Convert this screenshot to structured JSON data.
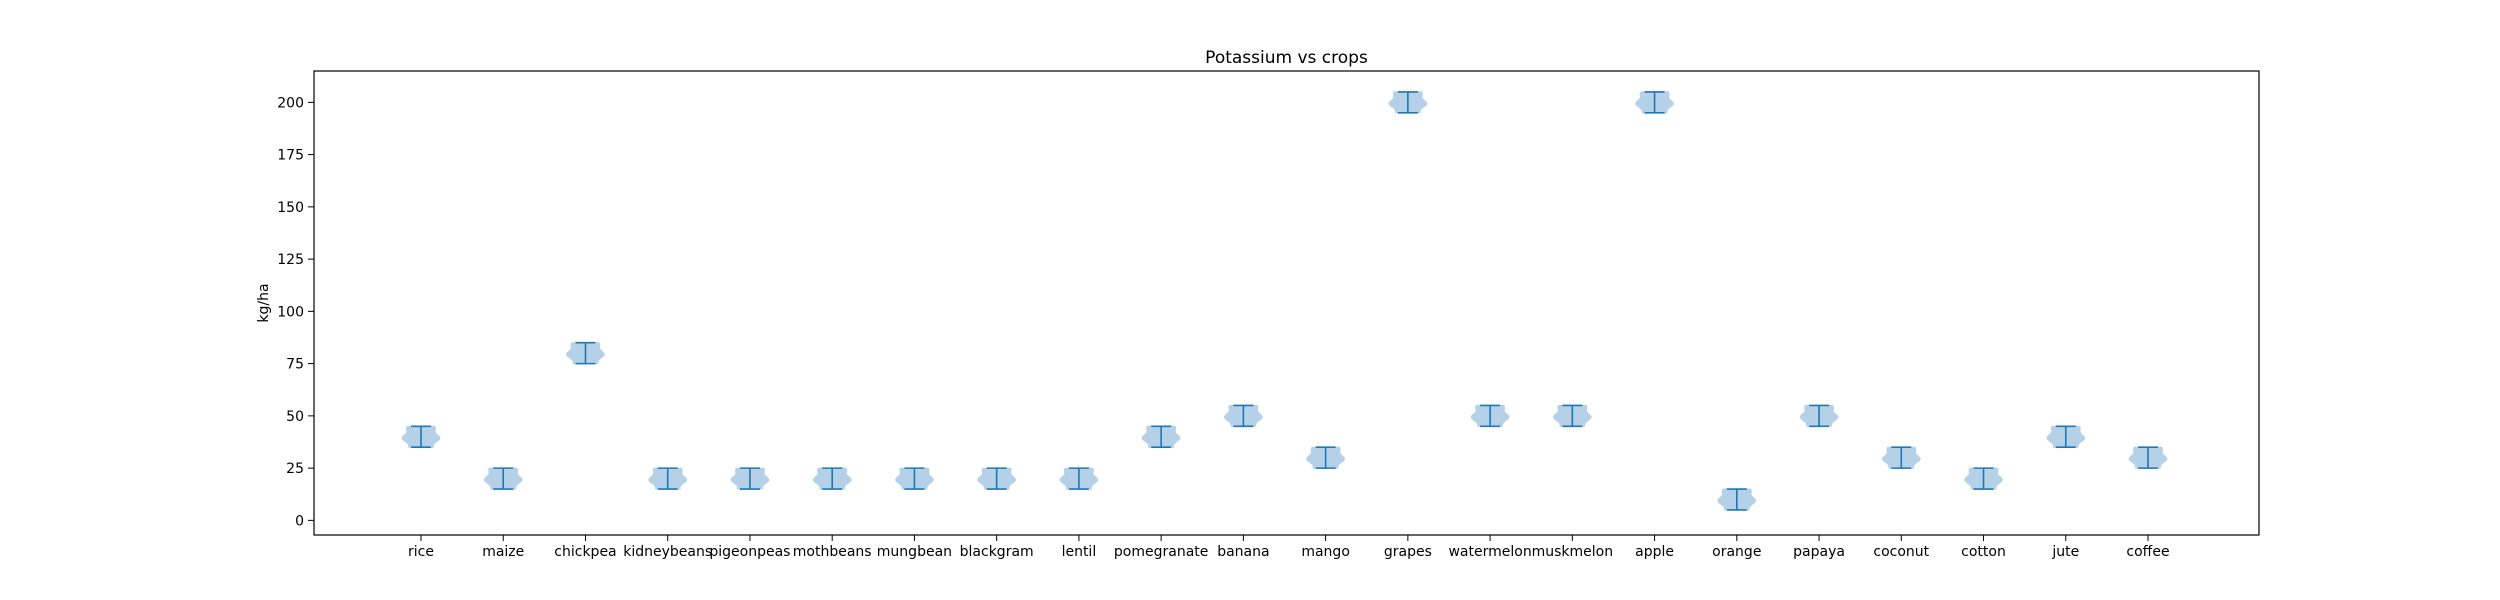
{
  "chart_data": {
    "type": "violin",
    "title": "Potassium vs crops",
    "xlabel": "",
    "ylabel": "kg/ha",
    "ylim": [
      -7,
      215
    ],
    "yticks": [
      0,
      25,
      50,
      75,
      100,
      125,
      150,
      175,
      200
    ],
    "grid": false,
    "categories": [
      "rice",
      "maize",
      "chickpea",
      "kidneybeans",
      "pigeonpeas",
      "mothbeans",
      "mungbean",
      "blackgram",
      "lentil",
      "pomegranate",
      "banana",
      "mango",
      "grapes",
      "watermelon",
      "muskmelon",
      "apple",
      "orange",
      "papaya",
      "coconut",
      "cotton",
      "jute",
      "coffee"
    ],
    "ranges": [
      {
        "min": 35,
        "max": 45
      },
      {
        "min": 15,
        "max": 25
      },
      {
        "min": 75,
        "max": 85
      },
      {
        "min": 15,
        "max": 25
      },
      {
        "min": 15,
        "max": 25
      },
      {
        "min": 15,
        "max": 25
      },
      {
        "min": 15,
        "max": 25
      },
      {
        "min": 15,
        "max": 25
      },
      {
        "min": 15,
        "max": 25
      },
      {
        "min": 35,
        "max": 45
      },
      {
        "min": 45,
        "max": 55
      },
      {
        "min": 25,
        "max": 35
      },
      {
        "min": 195,
        "max": 205
      },
      {
        "min": 45,
        "max": 55
      },
      {
        "min": 45,
        "max": 55
      },
      {
        "min": 195,
        "max": 205
      },
      {
        "min": 5,
        "max": 15
      },
      {
        "min": 45,
        "max": 55
      },
      {
        "min": 25,
        "max": 35
      },
      {
        "min": 15,
        "max": 25
      },
      {
        "min": 35,
        "max": 45
      },
      {
        "min": 25,
        "max": 35
      }
    ],
    "colors": {
      "body": "#a9c9e4",
      "line": "#1f77b4",
      "axis": "#000000"
    }
  }
}
